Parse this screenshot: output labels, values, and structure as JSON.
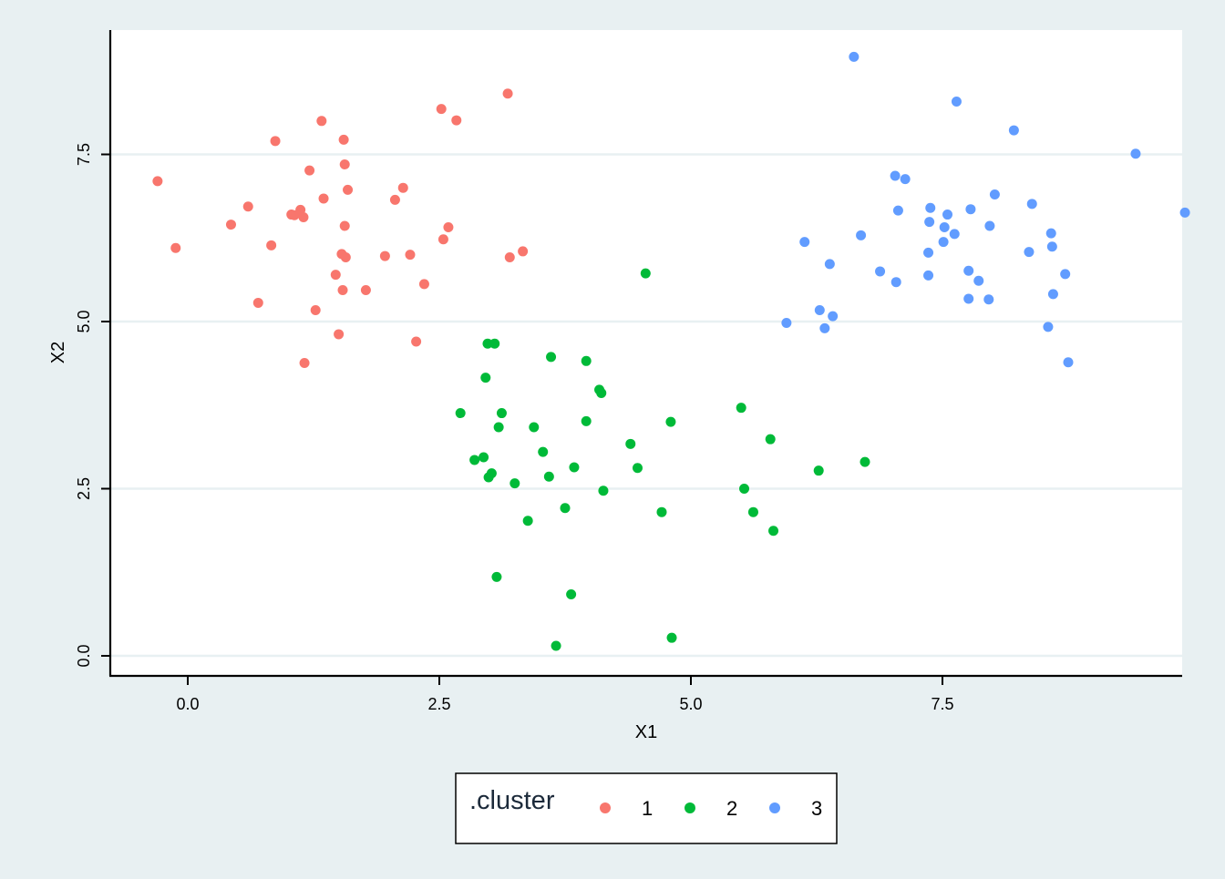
{
  "chart_data": {
    "type": "scatter",
    "title": "",
    "xlabel": "X1",
    "ylabel": "X2",
    "xlim": [
      -0.8,
      9.9
    ],
    "ylim": [
      -0.3,
      9.3
    ],
    "x_ticks": [
      0.0,
      2.5,
      5.0,
      7.5
    ],
    "y_ticks": [
      0.0,
      2.5,
      5.0,
      7.5
    ],
    "x_tick_labels": [
      "0.0",
      "2.5",
      "5.0",
      "7.5"
    ],
    "y_tick_labels": [
      "0.0",
      "2.5",
      "5.0",
      "7.5"
    ],
    "grid": "horizontal",
    "legend": {
      "title": ".cluster",
      "placement": "bottom"
    },
    "colors": {
      "background": "#e8f0f2",
      "panel": "#ffffff",
      "grid": "#e8f0f2"
    },
    "series": [
      {
        "name": "1",
        "color": "#f8766d",
        "points": [
          [
            -0.3,
            7.1
          ],
          [
            -0.12,
            6.1
          ],
          [
            0.43,
            6.45
          ],
          [
            0.6,
            6.72
          ],
          [
            0.7,
            5.28
          ],
          [
            0.83,
            6.14
          ],
          [
            0.87,
            7.7
          ],
          [
            1.03,
            6.6
          ],
          [
            1.06,
            6.59
          ],
          [
            1.12,
            6.67
          ],
          [
            1.15,
            6.56
          ],
          [
            1.16,
            4.38
          ],
          [
            1.21,
            7.26
          ],
          [
            1.27,
            5.17
          ],
          [
            1.33,
            8.0
          ],
          [
            1.35,
            6.84
          ],
          [
            1.47,
            5.7
          ],
          [
            1.5,
            4.81
          ],
          [
            1.53,
            6.01
          ],
          [
            1.55,
            7.72
          ],
          [
            1.54,
            5.47
          ],
          [
            1.56,
            7.35
          ],
          [
            1.56,
            6.43
          ],
          [
            1.57,
            5.96
          ],
          [
            1.59,
            6.97
          ],
          [
            1.77,
            5.47
          ],
          [
            1.96,
            5.98
          ],
          [
            2.06,
            6.82
          ],
          [
            2.14,
            7.0
          ],
          [
            2.21,
            6.0
          ],
          [
            2.27,
            4.7
          ],
          [
            2.35,
            5.56
          ],
          [
            2.52,
            8.18
          ],
          [
            2.54,
            6.23
          ],
          [
            2.59,
            6.41
          ],
          [
            2.67,
            8.01
          ],
          [
            3.18,
            8.41
          ],
          [
            3.2,
            5.96
          ],
          [
            3.33,
            6.05
          ]
        ]
      },
      {
        "name": "2",
        "color": "#00ba38",
        "points": [
          [
            2.71,
            3.63
          ],
          [
            2.85,
            2.93
          ],
          [
            2.94,
            2.97
          ],
          [
            2.96,
            4.16
          ],
          [
            2.98,
            4.67
          ],
          [
            2.99,
            2.67
          ],
          [
            3.02,
            2.73
          ],
          [
            3.05,
            4.67
          ],
          [
            3.07,
            1.18
          ],
          [
            3.09,
            3.42
          ],
          [
            3.12,
            3.63
          ],
          [
            3.25,
            2.58
          ],
          [
            3.38,
            2.02
          ],
          [
            3.44,
            3.42
          ],
          [
            3.53,
            3.05
          ],
          [
            3.59,
            2.68
          ],
          [
            3.61,
            4.47
          ],
          [
            3.66,
            0.15
          ],
          [
            3.75,
            2.21
          ],
          [
            3.81,
            0.92
          ],
          [
            3.84,
            2.82
          ],
          [
            3.96,
            3.51
          ],
          [
            3.96,
            4.41
          ],
          [
            4.09,
            3.98
          ],
          [
            4.11,
            3.93
          ],
          [
            4.13,
            2.47
          ],
          [
            4.4,
            3.17
          ],
          [
            4.47,
            2.81
          ],
          [
            4.55,
            5.72
          ],
          [
            4.71,
            2.15
          ],
          [
            4.8,
            3.5
          ],
          [
            4.81,
            0.27
          ],
          [
            5.5,
            3.71
          ],
          [
            5.53,
            2.5
          ],
          [
            5.62,
            2.15
          ],
          [
            5.79,
            3.24
          ],
          [
            5.82,
            1.87
          ],
          [
            6.27,
            2.77
          ],
          [
            6.73,
            2.9
          ]
        ]
      },
      {
        "name": "3",
        "color": "#619cff",
        "points": [
          [
            5.95,
            4.98
          ],
          [
            6.13,
            6.19
          ],
          [
            6.28,
            5.17
          ],
          [
            6.33,
            4.9
          ],
          [
            6.38,
            5.86
          ],
          [
            6.41,
            5.08
          ],
          [
            6.62,
            8.96
          ],
          [
            6.69,
            6.29
          ],
          [
            6.88,
            5.75
          ],
          [
            7.03,
            7.18
          ],
          [
            7.04,
            5.59
          ],
          [
            7.06,
            6.66
          ],
          [
            7.13,
            7.13
          ],
          [
            7.36,
            6.03
          ],
          [
            7.36,
            5.69
          ],
          [
            7.37,
            6.49
          ],
          [
            7.38,
            6.7
          ],
          [
            7.51,
            6.19
          ],
          [
            7.52,
            6.41
          ],
          [
            7.55,
            6.6
          ],
          [
            7.62,
            6.31
          ],
          [
            7.64,
            8.29
          ],
          [
            7.76,
            5.34
          ],
          [
            7.76,
            5.76
          ],
          [
            7.78,
            6.68
          ],
          [
            7.86,
            5.61
          ],
          [
            7.96,
            5.33
          ],
          [
            7.97,
            6.43
          ],
          [
            8.02,
            6.9
          ],
          [
            8.21,
            7.86
          ],
          [
            8.36,
            6.04
          ],
          [
            8.39,
            6.76
          ],
          [
            8.55,
            4.92
          ],
          [
            8.58,
            6.32
          ],
          [
            8.59,
            6.12
          ],
          [
            8.6,
            5.41
          ],
          [
            8.72,
            5.71
          ],
          [
            8.75,
            4.39
          ],
          [
            9.42,
            7.51
          ],
          [
            9.91,
            6.63
          ]
        ]
      }
    ]
  }
}
